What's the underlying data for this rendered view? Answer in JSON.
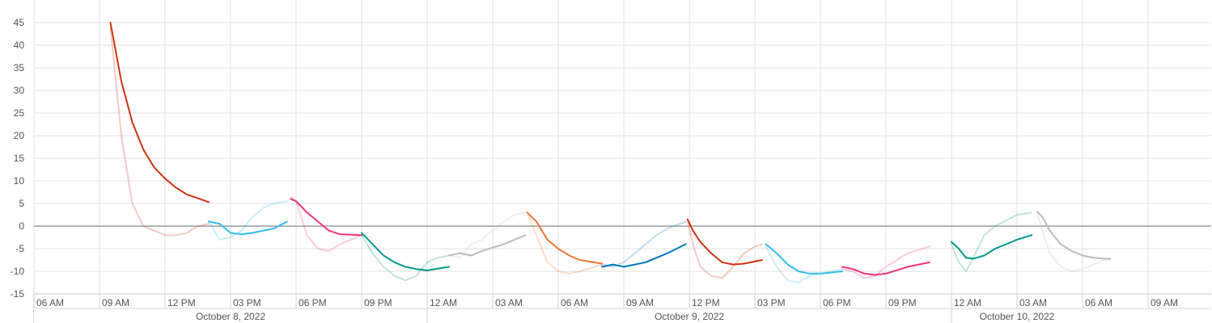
{
  "chart_data": {
    "type": "line",
    "title": "",
    "xlabel": "",
    "ylabel": "",
    "ylim": [
      -15,
      50
    ],
    "yticks": [
      -15,
      -10,
      -5,
      0,
      5,
      10,
      15,
      20,
      25,
      30,
      35,
      40,
      45
    ],
    "ytick_labels": [
      "-15",
      "-10",
      "-5",
      "0",
      "5",
      "10",
      "15",
      "20",
      "25",
      "30",
      "35",
      "40",
      "45"
    ],
    "xlim": [
      "2022-10-08 05:00",
      "2022-10-10 12:00"
    ],
    "time_ticks": [
      {
        "t": "2022-10-08 06:00",
        "label": "06 AM"
      },
      {
        "t": "2022-10-08 09:00",
        "label": "09 AM"
      },
      {
        "t": "2022-10-08 12:00",
        "label": "12 PM"
      },
      {
        "t": "2022-10-08 15:00",
        "label": "03 PM"
      },
      {
        "t": "2022-10-08 18:00",
        "label": "06 PM"
      },
      {
        "t": "2022-10-08 21:00",
        "label": "09 PM"
      },
      {
        "t": "2022-10-09 00:00",
        "label": "12 AM"
      },
      {
        "t": "2022-10-09 03:00",
        "label": "03 AM"
      },
      {
        "t": "2022-10-09 06:00",
        "label": "06 AM"
      },
      {
        "t": "2022-10-09 09:00",
        "label": "09 AM"
      },
      {
        "t": "2022-10-09 12:00",
        "label": "12 PM"
      },
      {
        "t": "2022-10-09 15:00",
        "label": "03 PM"
      },
      {
        "t": "2022-10-09 18:00",
        "label": "06 PM"
      },
      {
        "t": "2022-10-09 21:00",
        "label": "09 PM"
      },
      {
        "t": "2022-10-10 00:00",
        "label": "12 AM"
      },
      {
        "t": "2022-10-10 03:00",
        "label": "03 AM"
      },
      {
        "t": "2022-10-10 06:00",
        "label": "06 AM"
      },
      {
        "t": "2022-10-10 09:00",
        "label": "09 AM"
      }
    ],
    "date_labels": [
      {
        "label": "October 8, 2022",
        "start": "2022-10-08 05:00",
        "end": "2022-10-09 00:00"
      },
      {
        "label": "October 9, 2022",
        "start": "2022-10-09 00:00",
        "end": "2022-10-10 00:00"
      },
      {
        "label": "October 10, 2022",
        "start": "2022-10-10 00:00",
        "end": "2022-10-10 06:00"
      }
    ],
    "grid": true,
    "zero_line": true,
    "legend": "none",
    "series": [
      {
        "color": "#cc3311",
        "points": [
          [
            "2022-10-08 09:30",
            45
          ],
          [
            "2022-10-08 10:00",
            32
          ],
          [
            "2022-10-08 10:30",
            23
          ],
          [
            "2022-10-08 11:00",
            17
          ],
          [
            "2022-10-08 11:30",
            13
          ],
          [
            "2022-10-08 12:00",
            10.5
          ],
          [
            "2022-10-08 12:30",
            8.5
          ],
          [
            "2022-10-08 13:00",
            7
          ],
          [
            "2022-10-08 14:00",
            5.3
          ]
        ],
        "faint": [
          [
            "2022-10-08 09:30",
            44
          ],
          [
            "2022-10-08 10:00",
            20
          ],
          [
            "2022-10-08 10:30",
            5
          ],
          [
            "2022-10-08 11:00",
            0
          ],
          [
            "2022-10-08 11:30",
            -1
          ],
          [
            "2022-10-08 12:00",
            -2
          ],
          [
            "2022-10-08 12:30",
            -2
          ],
          [
            "2022-10-08 13:00",
            -1.5
          ],
          [
            "2022-10-08 13:30",
            0
          ],
          [
            "2022-10-08 14:00",
            0.5
          ]
        ]
      },
      {
        "color": "#33bbee",
        "points": [
          [
            "2022-10-08 14:00",
            1
          ],
          [
            "2022-10-08 14:30",
            0.5
          ],
          [
            "2022-10-08 15:00",
            -1.5
          ],
          [
            "2022-10-08 15:30",
            -1.8
          ],
          [
            "2022-10-08 16:00",
            -1.5
          ],
          [
            "2022-10-08 17:00",
            -0.5
          ],
          [
            "2022-10-08 17:35",
            1
          ]
        ],
        "faint": [
          [
            "2022-10-08 14:00",
            1
          ],
          [
            "2022-10-08 14:30",
            -3
          ],
          [
            "2022-10-08 15:00",
            -2.5
          ],
          [
            "2022-10-08 15:30",
            -1
          ],
          [
            "2022-10-08 16:00",
            2
          ],
          [
            "2022-10-08 16:30",
            4
          ],
          [
            "2022-10-08 17:00",
            5
          ],
          [
            "2022-10-08 17:35",
            5.5
          ]
        ]
      },
      {
        "color": "#ee3377",
        "points": [
          [
            "2022-10-08 17:45",
            6
          ],
          [
            "2022-10-08 18:00",
            5.5
          ],
          [
            "2022-10-08 18:30",
            3
          ],
          [
            "2022-10-08 19:00",
            1
          ],
          [
            "2022-10-08 19:30",
            -1
          ],
          [
            "2022-10-08 20:00",
            -1.8
          ],
          [
            "2022-10-08 21:00",
            -2
          ]
        ],
        "faint": [
          [
            "2022-10-08 17:45",
            6.5
          ],
          [
            "2022-10-08 18:00",
            5.5
          ],
          [
            "2022-10-08 18:30",
            -2
          ],
          [
            "2022-10-08 19:00",
            -5
          ],
          [
            "2022-10-08 19:30",
            -5.5
          ],
          [
            "2022-10-08 20:00",
            -4
          ],
          [
            "2022-10-08 21:00",
            -2
          ]
        ]
      },
      {
        "color": "#009988",
        "points": [
          [
            "2022-10-08 21:00",
            -1.5
          ],
          [
            "2022-10-08 21:30",
            -4
          ],
          [
            "2022-10-08 22:00",
            -6.5
          ],
          [
            "2022-10-08 22:30",
            -8
          ],
          [
            "2022-10-08 23:00",
            -9
          ],
          [
            "2022-10-08 23:30",
            -9.5
          ],
          [
            "2022-10-09 00:00",
            -9.8
          ],
          [
            "2022-10-09 01:00",
            -9
          ]
        ],
        "faint": [
          [
            "2022-10-08 21:00",
            -2
          ],
          [
            "2022-10-08 21:30",
            -6
          ],
          [
            "2022-10-08 22:00",
            -9
          ],
          [
            "2022-10-08 22:30",
            -11
          ],
          [
            "2022-10-08 23:00",
            -12
          ],
          [
            "2022-10-08 23:30",
            -11
          ],
          [
            "2022-10-09 00:00",
            -8
          ],
          [
            "2022-10-09 00:30",
            -7
          ],
          [
            "2022-10-09 01:00",
            -6.5
          ]
        ]
      },
      {
        "color": "#bbbbbb",
        "points": [
          [
            "2022-10-09 01:00",
            -6.5
          ],
          [
            "2022-10-09 01:30",
            -6
          ],
          [
            "2022-10-09 02:00",
            -6.5
          ],
          [
            "2022-10-09 02:30",
            -5.5
          ],
          [
            "2022-10-09 03:30",
            -4
          ],
          [
            "2022-10-09 04:30",
            -2
          ]
        ],
        "faint": [
          [
            "2022-10-09 01:00",
            -6.5
          ],
          [
            "2022-10-09 01:30",
            -7
          ],
          [
            "2022-10-09 02:00",
            -4
          ],
          [
            "2022-10-09 02:30",
            -3
          ],
          [
            "2022-10-09 03:00",
            -1
          ],
          [
            "2022-10-09 03:30",
            1
          ],
          [
            "2022-10-09 04:00",
            2.5
          ],
          [
            "2022-10-09 04:30",
            3
          ]
        ]
      },
      {
        "color": "#ee7733",
        "points": [
          [
            "2022-10-09 04:35",
            3
          ],
          [
            "2022-10-09 05:00",
            1
          ],
          [
            "2022-10-09 05:30",
            -3
          ],
          [
            "2022-10-09 06:00",
            -5
          ],
          [
            "2022-10-09 06:30",
            -6.5
          ],
          [
            "2022-10-09 07:00",
            -7.5
          ],
          [
            "2022-10-09 08:00",
            -8.3
          ]
        ],
        "faint": [
          [
            "2022-10-09 04:35",
            3
          ],
          [
            "2022-10-09 05:00",
            -2
          ],
          [
            "2022-10-09 05:30",
            -8
          ],
          [
            "2022-10-09 06:00",
            -10
          ],
          [
            "2022-10-09 06:30",
            -10.5
          ],
          [
            "2022-10-09 07:00",
            -10
          ],
          [
            "2022-10-09 08:00",
            -8.5
          ]
        ]
      },
      {
        "color": "#0077bb",
        "points": [
          [
            "2022-10-09 08:00",
            -9
          ],
          [
            "2022-10-09 08:30",
            -8.5
          ],
          [
            "2022-10-09 09:00",
            -9
          ],
          [
            "2022-10-09 10:00",
            -8
          ],
          [
            "2022-10-09 11:00",
            -6
          ],
          [
            "2022-10-09 11:50",
            -4
          ]
        ],
        "faint": [
          [
            "2022-10-09 08:00",
            -8.5
          ],
          [
            "2022-10-09 08:30",
            -9
          ],
          [
            "2022-10-09 09:00",
            -8
          ],
          [
            "2022-10-09 09:30",
            -6
          ],
          [
            "2022-10-09 10:00",
            -4
          ],
          [
            "2022-10-09 10:30",
            -2
          ],
          [
            "2022-10-09 11:00",
            -0.5
          ],
          [
            "2022-10-09 11:50",
            1
          ]
        ]
      },
      {
        "color": "#cc3311",
        "points": [
          [
            "2022-10-09 11:55",
            1.5
          ],
          [
            "2022-10-09 12:10",
            -1
          ],
          [
            "2022-10-09 12:30",
            -3.5
          ],
          [
            "2022-10-09 13:00",
            -6
          ],
          [
            "2022-10-09 13:30",
            -8
          ],
          [
            "2022-10-09 14:00",
            -8.5
          ],
          [
            "2022-10-09 14:30",
            -8.3
          ],
          [
            "2022-10-09 15:20",
            -7.5
          ]
        ],
        "faint": [
          [
            "2022-10-09 11:55",
            1
          ],
          [
            "2022-10-09 12:10",
            -4
          ],
          [
            "2022-10-09 12:30",
            -9
          ],
          [
            "2022-10-09 13:00",
            -11
          ],
          [
            "2022-10-09 13:30",
            -11.5
          ],
          [
            "2022-10-09 14:00",
            -9
          ],
          [
            "2022-10-09 14:30",
            -6
          ],
          [
            "2022-10-09 15:00",
            -4.5
          ],
          [
            "2022-10-09 15:20",
            -4
          ]
        ]
      },
      {
        "color": "#33bbee",
        "points": [
          [
            "2022-10-09 15:30",
            -4
          ],
          [
            "2022-10-09 16:00",
            -6
          ],
          [
            "2022-10-09 16:30",
            -8.5
          ],
          [
            "2022-10-09 17:00",
            -10
          ],
          [
            "2022-10-09 17:30",
            -10.5
          ],
          [
            "2022-10-09 18:00",
            -10.5
          ],
          [
            "2022-10-09 19:00",
            -10
          ]
        ],
        "faint": [
          [
            "2022-10-09 15:30",
            -4.5
          ],
          [
            "2022-10-09 16:00",
            -9
          ],
          [
            "2022-10-09 16:30",
            -12
          ],
          [
            "2022-10-09 17:00",
            -12.5
          ],
          [
            "2022-10-09 17:30",
            -11
          ],
          [
            "2022-10-09 18:00",
            -10.5
          ],
          [
            "2022-10-09 19:00",
            -9.5
          ]
        ]
      },
      {
        "color": "#ee3377",
        "points": [
          [
            "2022-10-09 19:00",
            -9
          ],
          [
            "2022-10-09 19:30",
            -9.5
          ],
          [
            "2022-10-09 20:00",
            -10.5
          ],
          [
            "2022-10-09 20:30",
            -10.8
          ],
          [
            "2022-10-09 21:00",
            -10.5
          ],
          [
            "2022-10-09 22:00",
            -9
          ],
          [
            "2022-10-09 23:00",
            -8
          ]
        ],
        "faint": [
          [
            "2022-10-09 19:00",
            -9.5
          ],
          [
            "2022-10-09 19:30",
            -10
          ],
          [
            "2022-10-09 20:00",
            -11.5
          ],
          [
            "2022-10-09 20:30",
            -11
          ],
          [
            "2022-10-09 21:00",
            -9
          ],
          [
            "2022-10-09 22:00",
            -6
          ],
          [
            "2022-10-09 23:00",
            -4.5
          ]
        ]
      },
      {
        "color": "#009988",
        "points": [
          [
            "2022-10-10 00:00",
            -3.5
          ],
          [
            "2022-10-10 00:20",
            -5
          ],
          [
            "2022-10-10 00:40",
            -7
          ],
          [
            "2022-10-10 01:00",
            -7.2
          ],
          [
            "2022-10-10 01:30",
            -6.5
          ],
          [
            "2022-10-10 02:00",
            -5
          ],
          [
            "2022-10-10 03:00",
            -3
          ],
          [
            "2022-10-10 03:40",
            -2
          ]
        ],
        "faint": [
          [
            "2022-10-10 00:00",
            -4
          ],
          [
            "2022-10-10 00:20",
            -8
          ],
          [
            "2022-10-10 00:40",
            -10
          ],
          [
            "2022-10-10 01:00",
            -7
          ],
          [
            "2022-10-10 01:30",
            -2
          ],
          [
            "2022-10-10 02:00",
            0
          ],
          [
            "2022-10-10 03:00",
            2.5
          ],
          [
            "2022-10-10 03:40",
            3
          ]
        ]
      },
      {
        "color": "#bbbbbb",
        "points": [
          [
            "2022-10-10 03:55",
            3.2
          ],
          [
            "2022-10-10 04:10",
            2
          ],
          [
            "2022-10-10 04:30",
            -1
          ],
          [
            "2022-10-10 05:00",
            -4
          ],
          [
            "2022-10-10 05:30",
            -5.5
          ],
          [
            "2022-10-10 06:00",
            -6.5
          ],
          [
            "2022-10-10 06:30",
            -7
          ],
          [
            "2022-10-10 07:15",
            -7.3
          ]
        ],
        "faint": [
          [
            "2022-10-10 03:55",
            3
          ],
          [
            "2022-10-10 04:10",
            -1
          ],
          [
            "2022-10-10 04:30",
            -6
          ],
          [
            "2022-10-10 05:00",
            -9
          ],
          [
            "2022-10-10 05:30",
            -10
          ],
          [
            "2022-10-10 06:00",
            -9.5
          ],
          [
            "2022-10-10 06:30",
            -8.5
          ],
          [
            "2022-10-10 07:15",
            -7
          ]
        ]
      }
    ]
  }
}
